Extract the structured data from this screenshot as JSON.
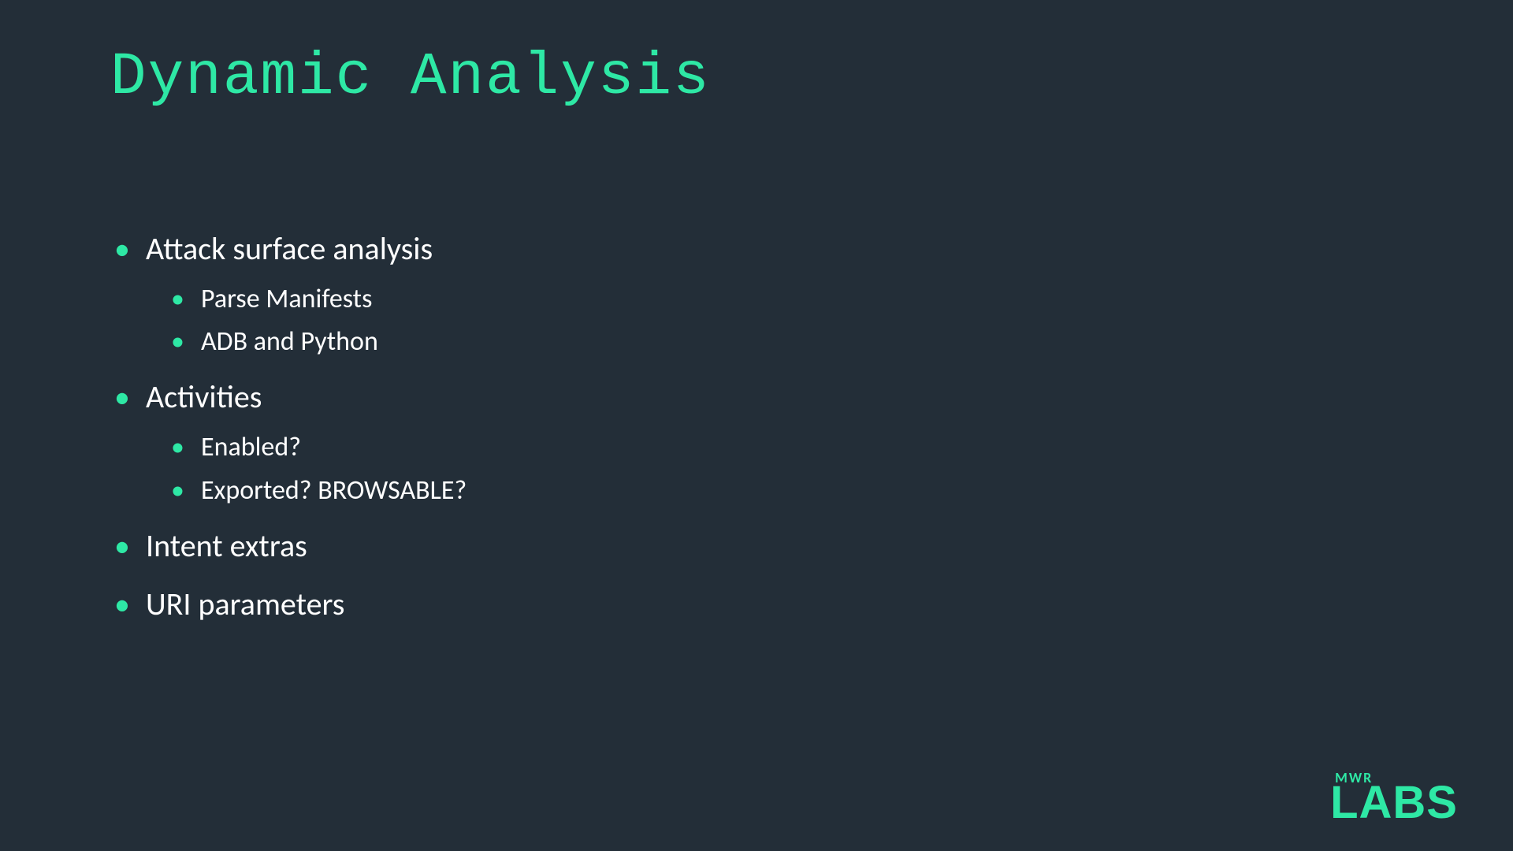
{
  "slide": {
    "title": "Dynamic Analysis",
    "background_color": "#232e38",
    "accent_color": "#2ee8a5",
    "text_color": "#ffffff",
    "title_font": "monospace",
    "title_fontsize": 76,
    "body_font": "sans-serif",
    "main_bullet_fontsize": 40,
    "sub_bullet_fontsize": 34,
    "bullets": [
      {
        "text": "Attack surface analysis",
        "level": 1,
        "children": [
          {
            "text": "Parse Manifests",
            "level": 2
          },
          {
            "text": "ADB and Python",
            "level": 2
          }
        ]
      },
      {
        "text": "Activities",
        "level": 1,
        "children": [
          {
            "text": "Enabled?",
            "level": 2
          },
          {
            "text": "Exported? BROWSABLE?",
            "level": 2
          }
        ]
      },
      {
        "text": "Intent extras",
        "level": 1,
        "children": []
      },
      {
        "text": "URI parameters",
        "level": 1,
        "children": []
      }
    ]
  },
  "logo": {
    "top_text": "MWR",
    "main_text": "LABS",
    "color": "#2ee8a5"
  }
}
